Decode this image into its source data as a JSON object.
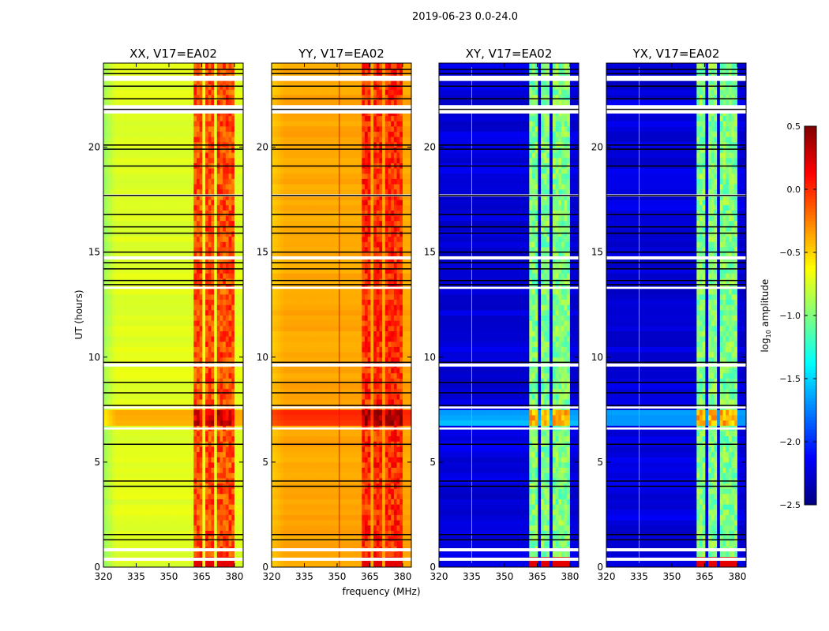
{
  "chart_data": {
    "type": "heatmap",
    "title": "2019-06-23 0.0-24.0",
    "xlabel": "frequency (MHz)",
    "ylabel": "UT (hours)",
    "xlim": [
      320,
      384
    ],
    "ylim": [
      0,
      24
    ],
    "xticks": [
      320,
      335,
      350,
      365,
      380
    ],
    "yticks": [
      0,
      5,
      10,
      15,
      20
    ],
    "colormap": "jet",
    "colorbar": {
      "label_main": "log",
      "label_sub": "10",
      "label_rest": " amplitude",
      "range": [
        -2.5,
        0.5
      ],
      "ticks": [
        "0.5",
        "0.0",
        "−0.5",
        "−1.0",
        "−1.5",
        "−2.0",
        "−2.5"
      ],
      "tick_values": [
        0.5,
        0.0,
        -0.5,
        -1.0,
        -1.5,
        -2.0,
        -2.5
      ]
    },
    "rfi_bands_mhz": [
      [
        361.5,
        365.5
      ],
      [
        366.5,
        371
      ],
      [
        372,
        375.5
      ],
      [
        376.5,
        380
      ]
    ],
    "flagged_hours": [
      [
        0.3,
        0.45
      ],
      [
        0.75,
        0.9
      ],
      [
        6.55,
        6.65
      ],
      [
        7.55,
        7.65
      ],
      [
        9.55,
        9.7
      ],
      [
        13.25,
        13.35
      ],
      [
        14.65,
        14.8
      ],
      [
        17.65,
        17.75
      ],
      [
        21.6,
        22.0
      ],
      [
        23.15,
        23.4
      ]
    ],
    "black_line_hours": [
      1.3,
      1.55,
      3.85,
      4.1,
      5.85,
      7.7,
      8.3,
      8.8,
      9.75,
      13.45,
      13.65,
      14.2,
      14.5,
      15.0,
      15.9,
      16.2,
      16.8,
      17.7,
      19.1,
      19.9,
      20.1,
      21.8,
      22.3,
      22.9,
      23.5,
      23.7
    ],
    "panels": [
      {
        "title": "XX, V17=EA02",
        "background": -0.75,
        "edge": -0.95,
        "band": -0.1,
        "spike_line_mhz": null,
        "spike_value": null
      },
      {
        "title": "YY, V17=EA02",
        "background": -0.4,
        "edge": -0.5,
        "band": 0.0,
        "spike_line_mhz": 351,
        "spike_value": 0.1
      },
      {
        "title": "XY, V17=EA02",
        "background": -2.3,
        "edge": -2.3,
        "band": -1.0,
        "spike_line_mhz": 335,
        "spike_value": -1.5
      },
      {
        "title": "YX, V17=EA02",
        "background": -2.3,
        "edge": -2.3,
        "band": -1.0,
        "spike_line_mhz": 335,
        "spike_value": -1.5
      }
    ]
  }
}
